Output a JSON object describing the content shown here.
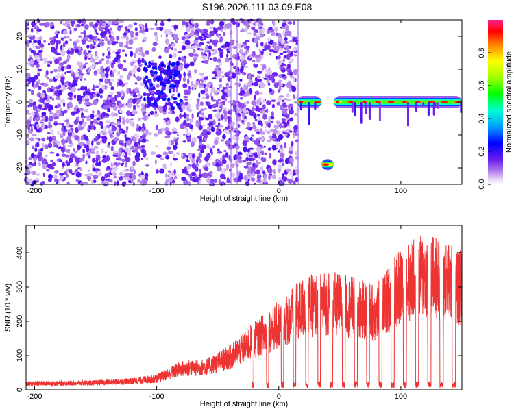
{
  "title": "S196.2026.111.03.09.E08",
  "chart_data": [
    {
      "type": "heatmap",
      "xlabel": "Height of straight line (km)",
      "ylabel": "Frequency (Hz)",
      "xlim": [
        -207,
        150
      ],
      "ylim": [
        -25,
        25
      ],
      "xticks": [
        -200,
        -100,
        0,
        100
      ],
      "yticks": [
        -20,
        -10,
        0,
        10,
        20
      ],
      "colorbar": {
        "label": "Normalized spectral amplitude",
        "range": [
          0,
          1
        ],
        "ticks": [
          0.0,
          0.2,
          0.4,
          0.6,
          0.8
        ],
        "tick_labels": [
          "0.0",
          "0.2",
          "0.4",
          "0.6",
          "0.8"
        ]
      },
      "features": [
        {
          "name": "tone",
          "x_start": 15,
          "x_end": 35,
          "freq": 0,
          "peak": 0.95
        },
        {
          "name": "tone",
          "x_start": 45,
          "x_end": 150,
          "freq": 0,
          "peak": 0.95
        },
        {
          "name": "burst",
          "x_start": 35,
          "x_end": 45,
          "freq": -19,
          "peak": 0.85
        },
        {
          "name": "blob",
          "x_start": -110,
          "x_end": -80,
          "freq": 4,
          "peak": 0.3
        }
      ]
    },
    {
      "type": "line",
      "xlabel": "Height of straight line (km)",
      "ylabel": "SNR (10 * v/v)",
      "xlim": [
        -207,
        150
      ],
      "ylim": [
        0,
        480
      ],
      "xticks": [
        -200,
        -100,
        0,
        100
      ],
      "yticks": [
        0,
        100,
        200,
        300,
        400
      ],
      "series": [
        {
          "name": "SNR",
          "color": "#ee3333",
          "envelope_x": [
            -207,
            -150,
            -120,
            -100,
            -80,
            -60,
            -40,
            -20,
            0,
            20,
            40,
            60,
            80,
            100,
            120,
            140,
            150
          ],
          "envelope_y": [
            25,
            28,
            35,
            45,
            85,
            90,
            130,
            200,
            260,
            330,
            350,
            330,
            310,
            420,
            460,
            430,
            410
          ],
          "notch_starts": [
            -22,
            -10,
            2,
            12,
            22,
            32,
            42,
            52,
            62,
            72,
            82,
            92,
            102,
            112,
            122,
            132,
            142
          ],
          "notch_widths": [
            1.6,
            1.8,
            2,
            2,
            2.2,
            2.2,
            2.2,
            2.4,
            2.4,
            2.4,
            2.6,
            2.6,
            2.6,
            2.6,
            2.8,
            2.8,
            2.8
          ]
        }
      ]
    }
  ]
}
